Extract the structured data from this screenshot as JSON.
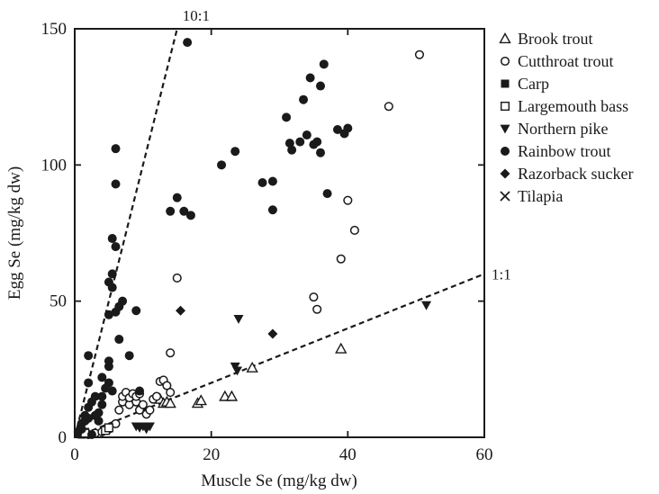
{
  "chart_data": {
    "type": "scatter",
    "title": "",
    "xlabel": "Muscle Se (mg/kg dw)",
    "ylabel": "Egg Se (mg/kg dw)",
    "xlim": [
      0,
      60
    ],
    "ylim": [
      0,
      150
    ],
    "xticks": [
      "0",
      "20",
      "40",
      "60"
    ],
    "yticks": [
      "0",
      "50",
      "100",
      "150"
    ],
    "grid": false,
    "legend_position": "right",
    "reference_lines": [
      {
        "label": "10:1",
        "slope": 10
      },
      {
        "label": "1:1",
        "slope": 1
      }
    ],
    "series": [
      {
        "name": "Brook trout",
        "marker": "triangle-open",
        "points": [
          [
            12.5,
            14
          ],
          [
            13,
            12.5
          ],
          [
            13.5,
            13
          ],
          [
            14,
            12.5
          ],
          [
            18,
            12.5
          ],
          [
            18.5,
            13.5
          ],
          [
            22,
            15
          ],
          [
            23,
            15
          ],
          [
            26,
            25.5
          ],
          [
            39,
            32.5
          ]
        ]
      },
      {
        "name": "Cutthroat trout",
        "marker": "circle-open",
        "points": [
          [
            2,
            1
          ],
          [
            3,
            1.5
          ],
          [
            4,
            2
          ],
          [
            5,
            3
          ],
          [
            6,
            5
          ],
          [
            6.5,
            10
          ],
          [
            7,
            13
          ],
          [
            7,
            15
          ],
          [
            7.5,
            16.5
          ],
          [
            8,
            12
          ],
          [
            8,
            14.5
          ],
          [
            8.5,
            16
          ],
          [
            9,
            13
          ],
          [
            9,
            15
          ],
          [
            9.5,
            10
          ],
          [
            9.5,
            16
          ],
          [
            10,
            12
          ],
          [
            10.5,
            8.5
          ],
          [
            11,
            10
          ],
          [
            11.5,
            14
          ],
          [
            12,
            15
          ],
          [
            12.5,
            20.5
          ],
          [
            13,
            21
          ],
          [
            13.5,
            19
          ],
          [
            14,
            16.5
          ],
          [
            14,
            31
          ],
          [
            15,
            58.5
          ],
          [
            35,
            51.5
          ],
          [
            35.5,
            47
          ],
          [
            39,
            65.5
          ],
          [
            40,
            87
          ],
          [
            41,
            76
          ],
          [
            46,
            121.5
          ],
          [
            50.5,
            140.5
          ]
        ]
      },
      {
        "name": "Carp",
        "marker": "square-filled",
        "points": [
          [
            1,
            1
          ],
          [
            1.5,
            2
          ]
        ]
      },
      {
        "name": "Largemouth bass",
        "marker": "square-open",
        "points": [
          [
            1.5,
            1.5
          ],
          [
            4.5,
            2.5
          ],
          [
            5,
            3.5
          ]
        ]
      },
      {
        "name": "Northern pike",
        "marker": "triangle-down-filled",
        "points": [
          [
            9,
            4
          ],
          [
            9.5,
            3.5
          ],
          [
            10,
            4
          ],
          [
            10.5,
            3
          ],
          [
            11,
            4
          ],
          [
            23.5,
            26
          ],
          [
            23.8,
            24.5
          ],
          [
            24,
            43.5
          ],
          [
            51.5,
            48.5
          ]
        ]
      },
      {
        "name": "Rainbow trout",
        "marker": "circle-filled",
        "points": [
          [
            0.5,
            2
          ],
          [
            1,
            3
          ],
          [
            1,
            5
          ],
          [
            1.5,
            6
          ],
          [
            1.5,
            8
          ],
          [
            2,
            7
          ],
          [
            2,
            11
          ],
          [
            2,
            20
          ],
          [
            2,
            30
          ],
          [
            2.5,
            1
          ],
          [
            2.5,
            13
          ],
          [
            3,
            8
          ],
          [
            3,
            15
          ],
          [
            3.5,
            6
          ],
          [
            3.5,
            9
          ],
          [
            4,
            12
          ],
          [
            4,
            15
          ],
          [
            4,
            22
          ],
          [
            4.5,
            18
          ],
          [
            5,
            20
          ],
          [
            5,
            26
          ],
          [
            5,
            28
          ],
          [
            5,
            45
          ],
          [
            5,
            57
          ],
          [
            5.5,
            73
          ],
          [
            5.5,
            55
          ],
          [
            5.5,
            60
          ],
          [
            5.5,
            17
          ],
          [
            6,
            46
          ],
          [
            6,
            93
          ],
          [
            6,
            70
          ],
          [
            6,
            106
          ],
          [
            6.5,
            36
          ],
          [
            6.5,
            48
          ],
          [
            7,
            50
          ],
          [
            8,
            30
          ],
          [
            9,
            46.5
          ],
          [
            9.5,
            17
          ],
          [
            14,
            83
          ],
          [
            15,
            88
          ],
          [
            16,
            83
          ],
          [
            16.5,
            145
          ],
          [
            17,
            81.5
          ],
          [
            21.5,
            100
          ],
          [
            23.5,
            105
          ],
          [
            27.5,
            93.5
          ],
          [
            29,
            94
          ],
          [
            29,
            83.5
          ],
          [
            31,
            117.5
          ],
          [
            31.5,
            108
          ],
          [
            31.8,
            105.5
          ],
          [
            33,
            108.5
          ],
          [
            33.5,
            124
          ],
          [
            34,
            111
          ],
          [
            34.5,
            132
          ],
          [
            35,
            107.5
          ],
          [
            35.5,
            108.5
          ],
          [
            36,
            104.5
          ],
          [
            36,
            129
          ],
          [
            36.5,
            137
          ],
          [
            37,
            89.5
          ],
          [
            38.5,
            113
          ],
          [
            39.5,
            111.5
          ],
          [
            40,
            113.5
          ]
        ]
      },
      {
        "name": "Razorback sucker",
        "marker": "diamond-filled",
        "points": [
          [
            15.5,
            46.5
          ],
          [
            29,
            38
          ]
        ]
      },
      {
        "name": "Tilapia",
        "marker": "x",
        "points": []
      }
    ]
  }
}
